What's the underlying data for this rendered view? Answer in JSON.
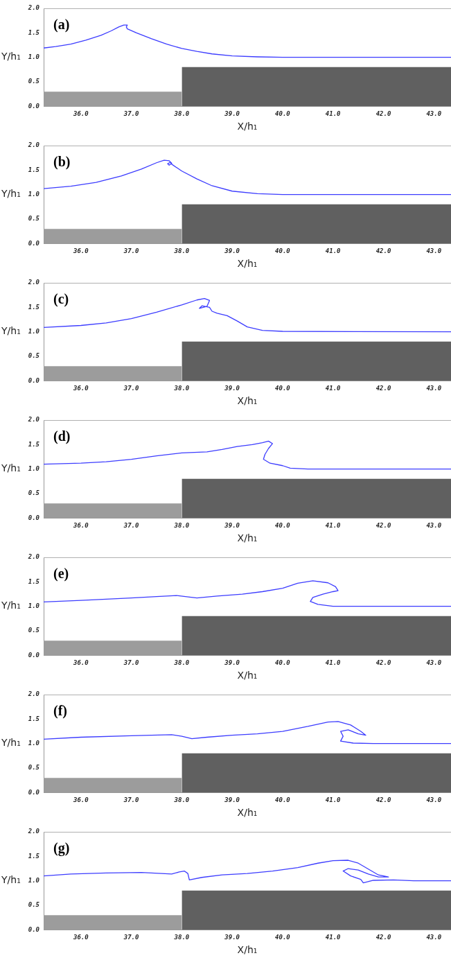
{
  "chart_data": [
    {
      "type": "line",
      "title": "(a)",
      "xlabel": "X/h₁",
      "ylabel": "Y/h₁",
      "xlim": [
        35.26,
        43.34
      ],
      "ylim": [
        0,
        2
      ],
      "xticks": [
        {
          "value": 36,
          "label": "36.0"
        },
        {
          "value": 37,
          "label": "37.0"
        },
        {
          "value": 38,
          "label": "38.0"
        },
        {
          "value": 39,
          "label": "39.0"
        },
        {
          "value": 40,
          "label": "40.0"
        },
        {
          "value": 41,
          "label": "41.0"
        },
        {
          "value": 42,
          "label": "42.0"
        },
        {
          "value": 43,
          "label": "43.0"
        }
      ],
      "yticks": [
        {
          "value": 0,
          "label": "0.0"
        },
        {
          "value": 0.5,
          "label": "0.5"
        },
        {
          "value": 1,
          "label": "1.0"
        },
        {
          "value": 1.5,
          "label": "1.5"
        },
        {
          "value": 2,
          "label": "2.0"
        }
      ],
      "series": [
        {
          "type": "area",
          "color": "#9c9c9c",
          "x": [
            35.26,
            38
          ],
          "values": [
            0.3,
            0.3
          ]
        },
        {
          "type": "area",
          "color": "#606060",
          "x": [
            38,
            43.34
          ],
          "values": [
            0.8,
            0.8
          ]
        },
        {
          "type": "line",
          "color": "#3c3cff",
          "x": [
            35.26,
            35.5,
            35.8,
            36.1,
            36.4,
            36.6,
            36.75,
            36.85,
            36.92,
            36.9,
            36.92,
            37.1,
            37.4,
            37.7,
            38.0,
            38.3,
            38.6,
            39.0,
            39.5,
            40,
            43.34
          ],
          "values": [
            1.19,
            1.22,
            1.27,
            1.35,
            1.45,
            1.54,
            1.62,
            1.66,
            1.66,
            1.62,
            1.58,
            1.5,
            1.38,
            1.27,
            1.18,
            1.12,
            1.07,
            1.03,
            1.01,
            1.0,
            1.0
          ]
        }
      ]
    },
    {
      "type": "line",
      "title": "(b)",
      "xlabel": "X/h₁",
      "ylabel": "Y/h₁",
      "xlim": [
        35.26,
        43.34
      ],
      "ylim": [
        0,
        2
      ],
      "xticks": [
        {
          "value": 36,
          "label": "36.0"
        },
        {
          "value": 37,
          "label": "37.0"
        },
        {
          "value": 38,
          "label": "38.0"
        },
        {
          "value": 39,
          "label": "39.0"
        },
        {
          "value": 40,
          "label": "40.0"
        },
        {
          "value": 41,
          "label": "41.0"
        },
        {
          "value": 42,
          "label": "42.0"
        },
        {
          "value": 43,
          "label": "43.0"
        }
      ],
      "yticks": [
        {
          "value": 0,
          "label": "0.0"
        },
        {
          "value": 0.5,
          "label": "0.5"
        },
        {
          "value": 1,
          "label": "1.0"
        },
        {
          "value": 1.5,
          "label": "1.5"
        },
        {
          "value": 2,
          "label": "2.0"
        }
      ],
      "series": [
        {
          "type": "area",
          "color": "#9c9c9c",
          "x": [
            35.26,
            38
          ],
          "values": [
            0.3,
            0.3
          ]
        },
        {
          "type": "area",
          "color": "#606060",
          "x": [
            38,
            43.34
          ],
          "values": [
            0.8,
            0.8
          ]
        },
        {
          "type": "line",
          "color": "#3c3cff",
          "x": [
            35.26,
            35.8,
            36.3,
            36.8,
            37.2,
            37.5,
            37.65,
            37.75,
            37.8,
            37.75,
            37.72,
            37.78,
            37.8,
            38.0,
            38.3,
            38.6,
            39.0,
            39.5,
            40,
            43.34
          ],
          "values": [
            1.12,
            1.17,
            1.25,
            1.38,
            1.52,
            1.65,
            1.7,
            1.69,
            1.64,
            1.6,
            1.63,
            1.66,
            1.62,
            1.48,
            1.32,
            1.18,
            1.07,
            1.02,
            1.0,
            1.0
          ]
        }
      ]
    },
    {
      "type": "line",
      "title": "(c)",
      "xlabel": "X/h₁",
      "ylabel": "Y/h₁",
      "xlim": [
        35.26,
        43.34
      ],
      "ylim": [
        0,
        2
      ],
      "xticks": [
        {
          "value": 36,
          "label": "36.0"
        },
        {
          "value": 37,
          "label": "37.0"
        },
        {
          "value": 38,
          "label": "38.0"
        },
        {
          "value": 39,
          "label": "39.0"
        },
        {
          "value": 40,
          "label": "40.0"
        },
        {
          "value": 41,
          "label": "41.0"
        },
        {
          "value": 42,
          "label": "42.0"
        },
        {
          "value": 43,
          "label": "43.0"
        }
      ],
      "yticks": [
        {
          "value": 0,
          "label": "0.0"
        },
        {
          "value": 0.5,
          "label": "0.5"
        },
        {
          "value": 1,
          "label": "1.0"
        },
        {
          "value": 1.5,
          "label": "1.5"
        },
        {
          "value": 2,
          "label": "2.0"
        }
      ],
      "series": [
        {
          "type": "area",
          "color": "#9c9c9c",
          "x": [
            35.26,
            38
          ],
          "values": [
            0.3,
            0.3
          ]
        },
        {
          "type": "area",
          "color": "#606060",
          "x": [
            38,
            43.34
          ],
          "values": [
            0.8,
            0.8
          ]
        },
        {
          "type": "line",
          "color": "#3c3cff",
          "x": [
            35.26,
            36,
            36.5,
            37,
            37.5,
            38,
            38.3,
            38.45,
            38.55,
            38.5,
            38.35,
            38.4,
            38.55,
            38.6,
            38.7,
            38.9,
            39.1,
            39.3,
            39.6,
            40,
            43.34
          ],
          "values": [
            1.09,
            1.13,
            1.18,
            1.27,
            1.4,
            1.55,
            1.65,
            1.68,
            1.64,
            1.52,
            1.48,
            1.53,
            1.5,
            1.42,
            1.38,
            1.33,
            1.22,
            1.1,
            1.03,
            1.01,
            1.0
          ]
        }
      ]
    },
    {
      "type": "line",
      "title": "(d)",
      "xlabel": "X/h₁",
      "ylabel": "Y/h₁",
      "xlim": [
        35.26,
        43.34
      ],
      "ylim": [
        0,
        2
      ],
      "xticks": [
        {
          "value": 36,
          "label": "36.0"
        },
        {
          "value": 37,
          "label": "37.0"
        },
        {
          "value": 38,
          "label": "38.0"
        },
        {
          "value": 39,
          "label": "39.0"
        },
        {
          "value": 40,
          "label": "40.0"
        },
        {
          "value": 41,
          "label": "41.0"
        },
        {
          "value": 42,
          "label": "42.0"
        },
        {
          "value": 43,
          "label": "43.0"
        }
      ],
      "yticks": [
        {
          "value": 0,
          "label": "0.0"
        },
        {
          "value": 0.5,
          "label": "0.5"
        },
        {
          "value": 1,
          "label": "1.0"
        },
        {
          "value": 1.5,
          "label": "1.5"
        },
        {
          "value": 2,
          "label": "2.0"
        }
      ],
      "series": [
        {
          "type": "area",
          "color": "#9c9c9c",
          "x": [
            35.26,
            38
          ],
          "values": [
            0.3,
            0.3
          ]
        },
        {
          "type": "area",
          "color": "#606060",
          "x": [
            38,
            43.34
          ],
          "values": [
            0.8,
            0.8
          ]
        },
        {
          "type": "line",
          "color": "#3c3cff",
          "x": [
            35.26,
            36,
            36.5,
            37,
            37.5,
            38,
            38.5,
            38.8,
            39.1,
            39.4,
            39.6,
            39.72,
            39.8,
            39.72,
            39.65,
            39.62,
            39.75,
            40,
            40.15,
            40.5,
            43.34
          ],
          "values": [
            1.1,
            1.12,
            1.15,
            1.2,
            1.27,
            1.33,
            1.35,
            1.4,
            1.46,
            1.5,
            1.54,
            1.57,
            1.52,
            1.42,
            1.3,
            1.2,
            1.12,
            1.07,
            1.02,
            1.0,
            1.0
          ]
        }
      ]
    },
    {
      "type": "line",
      "title": "(e)",
      "xlabel": "X/h₁",
      "ylabel": "Y/h₁",
      "xlim": [
        35.26,
        43.34
      ],
      "ylim": [
        0,
        2
      ],
      "xticks": [
        {
          "value": 36,
          "label": "36.0"
        },
        {
          "value": 37,
          "label": "37.0"
        },
        {
          "value": 38,
          "label": "38.0"
        },
        {
          "value": 39,
          "label": "39.0"
        },
        {
          "value": 40,
          "label": "40.0"
        },
        {
          "value": 41,
          "label": "41.0"
        },
        {
          "value": 42,
          "label": "42.0"
        },
        {
          "value": 43,
          "label": "43.0"
        }
      ],
      "yticks": [
        {
          "value": 0,
          "label": "0.0"
        },
        {
          "value": 0.5,
          "label": "0.5"
        },
        {
          "value": 1,
          "label": "1.0"
        },
        {
          "value": 1.5,
          "label": "1.5"
        },
        {
          "value": 2,
          "label": "2.0"
        }
      ],
      "series": [
        {
          "type": "area",
          "color": "#9c9c9c",
          "x": [
            35.26,
            38
          ],
          "values": [
            0.3,
            0.3
          ]
        },
        {
          "type": "area",
          "color": "#606060",
          "x": [
            38,
            43.34
          ],
          "values": [
            0.8,
            0.8
          ]
        },
        {
          "type": "line",
          "color": "#3c3cff",
          "x": [
            35.26,
            36,
            37,
            37.5,
            37.9,
            38.3,
            38.7,
            39.2,
            39.6,
            40,
            40.3,
            40.6,
            40.9,
            41.05,
            41.1,
            41.0,
            40.8,
            40.6,
            40.55,
            40.7,
            41.0,
            41.4,
            43.34
          ],
          "values": [
            1.09,
            1.12,
            1.17,
            1.2,
            1.22,
            1.17,
            1.21,
            1.25,
            1.3,
            1.37,
            1.47,
            1.52,
            1.48,
            1.4,
            1.32,
            1.3,
            1.25,
            1.18,
            1.1,
            1.04,
            1.0,
            1.0,
            1.0
          ]
        }
      ]
    },
    {
      "type": "line",
      "title": "(f)",
      "xlabel": "X/h₁",
      "ylabel": "Y/h₁",
      "xlim": [
        35.26,
        43.34
      ],
      "ylim": [
        0,
        2
      ],
      "xticks": [
        {
          "value": 36,
          "label": "36.0"
        },
        {
          "value": 37,
          "label": "37.0"
        },
        {
          "value": 38,
          "label": "38.0"
        },
        {
          "value": 39,
          "label": "39.0"
        },
        {
          "value": 40,
          "label": "40.0"
        },
        {
          "value": 41,
          "label": "41.0"
        },
        {
          "value": 42,
          "label": "42.0"
        },
        {
          "value": 43,
          "label": "43.0"
        }
      ],
      "yticks": [
        {
          "value": 0,
          "label": "0.0"
        },
        {
          "value": 0.5,
          "label": "0.5"
        },
        {
          "value": 1,
          "label": "1.0"
        },
        {
          "value": 1.5,
          "label": "1.5"
        },
        {
          "value": 2,
          "label": "2.0"
        }
      ],
      "series": [
        {
          "type": "area",
          "color": "#9c9c9c",
          "x": [
            35.26,
            38
          ],
          "values": [
            0.3,
            0.3
          ]
        },
        {
          "type": "area",
          "color": "#606060",
          "x": [
            38,
            43.34
          ],
          "values": [
            0.8,
            0.8
          ]
        },
        {
          "type": "line",
          "color": "#3c3cff",
          "x": [
            35.26,
            36,
            37,
            37.8,
            38.0,
            38.2,
            38.5,
            39.0,
            39.5,
            40,
            40.5,
            40.9,
            41.1,
            41.35,
            41.55,
            41.65,
            41.5,
            41.3,
            41.15,
            41.2,
            41.15,
            41.4,
            41.8,
            43.34
          ],
          "values": [
            1.09,
            1.13,
            1.16,
            1.18,
            1.15,
            1.1,
            1.13,
            1.17,
            1.2,
            1.25,
            1.35,
            1.44,
            1.45,
            1.38,
            1.25,
            1.17,
            1.2,
            1.28,
            1.25,
            1.15,
            1.05,
            1.01,
            1.0,
            1.0
          ]
        }
      ]
    },
    {
      "type": "line",
      "title": "(g)",
      "xlabel": "X/h₁",
      "ylabel": "Y/h₁",
      "xlim": [
        35.26,
        43.34
      ],
      "ylim": [
        0,
        2
      ],
      "xticks": [
        {
          "value": 36,
          "label": "36.0"
        },
        {
          "value": 37,
          "label": "37.0"
        },
        {
          "value": 38,
          "label": "38.0"
        },
        {
          "value": 39,
          "label": "39.0"
        },
        {
          "value": 40,
          "label": "40.0"
        },
        {
          "value": 41,
          "label": "41.0"
        },
        {
          "value": 42,
          "label": "42.0"
        },
        {
          "value": 43,
          "label": "43.0"
        }
      ],
      "yticks": [
        {
          "value": 0,
          "label": "0.0"
        },
        {
          "value": 0.5,
          "label": "0.5"
        },
        {
          "value": 1,
          "label": "1.0"
        },
        {
          "value": 1.5,
          "label": "1.5"
        },
        {
          "value": 2,
          "label": "2.0"
        }
      ],
      "series": [
        {
          "type": "area",
          "color": "#9c9c9c",
          "x": [
            35.26,
            38
          ],
          "values": [
            0.3,
            0.3
          ]
        },
        {
          "type": "area",
          "color": "#606060",
          "x": [
            38,
            43.34
          ],
          "values": [
            0.8,
            0.8
          ]
        },
        {
          "type": "line",
          "color": "#3c3cff",
          "x": [
            35.26,
            35.8,
            36.5,
            37.2,
            37.8,
            37.95,
            38.05,
            38.12,
            38.15,
            38.4,
            38.8,
            39.3,
            39.8,
            40.3,
            40.7,
            41.0,
            41.3,
            41.5,
            41.7,
            41.9,
            42.1,
            41.9,
            41.7,
            41.5,
            41.3,
            41.2,
            41.35,
            41.55,
            41.6,
            41.8,
            42.2,
            42.6,
            43.34
          ],
          "values": [
            1.1,
            1.14,
            1.16,
            1.17,
            1.14,
            1.18,
            1.2,
            1.15,
            1.02,
            1.07,
            1.12,
            1.15,
            1.2,
            1.27,
            1.36,
            1.41,
            1.42,
            1.36,
            1.24,
            1.12,
            1.08,
            1.08,
            1.14,
            1.22,
            1.25,
            1.2,
            1.1,
            1.03,
            0.96,
            1.01,
            1.02,
            1.0,
            1.0
          ]
        }
      ]
    }
  ]
}
